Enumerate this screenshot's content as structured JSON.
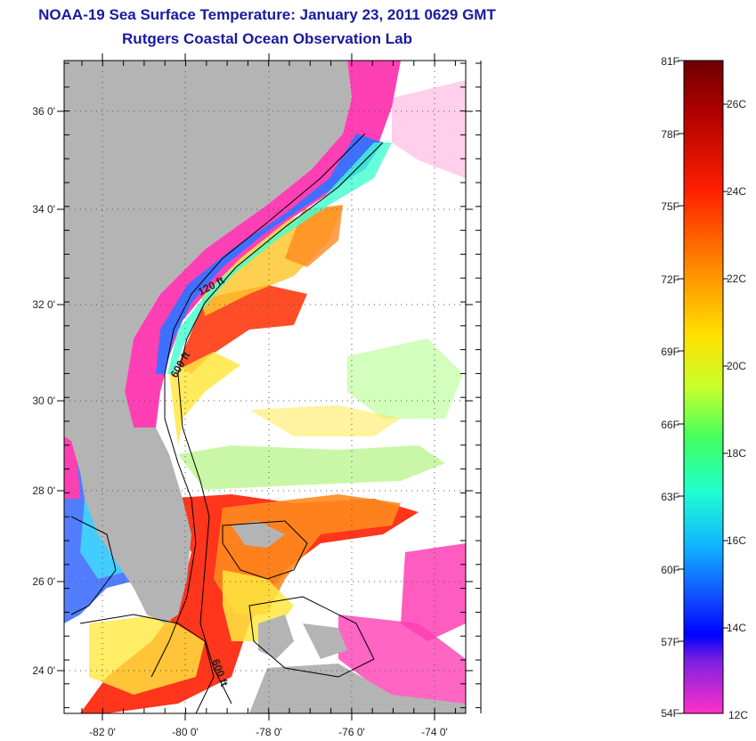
{
  "title": "NOAA-19 Sea Surface Temperature:  January 23, 2011 0629 GMT",
  "subtitle": "Rutgers Coastal Ocean Observation Lab",
  "map": {
    "lat_ticks": [
      "36 0'",
      "34 0'",
      "32 0'",
      "30 0'",
      "28 0'",
      "26 0'",
      "24 0'"
    ],
    "lon_ticks": [
      "-82 0'",
      "-80 0'",
      "-78 0'",
      "-76 0'",
      "-74 0'"
    ],
    "isobath_labels": [
      "120 ft",
      "600 ft",
      "600 ft"
    ],
    "colors": {
      "land": "#b4b4b4",
      "cold": "#ff3fb4",
      "cool_blue": "#3f6fff",
      "mid_green": "#7fff3f",
      "warm_yellow": "#ffe83f",
      "warm_orange": "#ff8a1f",
      "hot_red": "#ff2a10",
      "no_data": "#ffffff"
    }
  },
  "colorbar": {
    "fahrenheit_labels": [
      "81F",
      "78F",
      "75F",
      "72F",
      "69F",
      "66F",
      "63F",
      "60F",
      "57F",
      "54F"
    ],
    "celsius_labels": [
      "26C",
      "24C",
      "22C",
      "20C",
      "18C",
      "16C",
      "14C",
      "12C"
    ],
    "gradient_top": "#7a0000",
    "gradient_bottom": "#ff33cc"
  }
}
